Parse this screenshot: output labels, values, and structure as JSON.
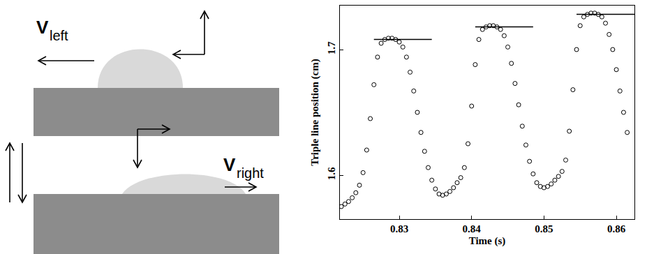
{
  "diagram": {
    "labels": [
      {
        "symbol": "V",
        "subscript": "left"
      },
      {
        "symbol": "V",
        "subscript": "right"
      }
    ]
  },
  "chart_data": {
    "type": "scatter",
    "x_label": "Time (s)",
    "y_label": "Triple line position (cm)",
    "xlim": [
      0.8218,
      0.8625
    ],
    "ylim": [
      1.565,
      1.735
    ],
    "xticks": [
      0.83,
      0.84,
      0.85,
      0.86
    ],
    "yticks": [
      1.6,
      1.7
    ],
    "grid": false,
    "series": [
      {
        "type": "scatter",
        "marker": "open circle",
        "color": "#000000",
        "x": [
          0.822,
          0.8225,
          0.823,
          0.8235,
          0.824,
          0.8245,
          0.825,
          0.8255,
          0.826,
          0.8265,
          0.827,
          0.8275,
          0.828,
          0.8285,
          0.829,
          0.8295,
          0.83,
          0.8305,
          0.831,
          0.8315,
          0.832,
          0.8325,
          0.833,
          0.8335,
          0.834,
          0.8345,
          0.835,
          0.8355,
          0.836,
          0.8365,
          0.837,
          0.8375,
          0.838,
          0.8385,
          0.839,
          0.8395,
          0.84,
          0.8405,
          0.841,
          0.8415,
          0.842,
          0.8425,
          0.843,
          0.8435,
          0.844,
          0.8445,
          0.845,
          0.8455,
          0.846,
          0.8465,
          0.847,
          0.8475,
          0.848,
          0.8485,
          0.849,
          0.8495,
          0.85,
          0.8505,
          0.851,
          0.8515,
          0.852,
          0.8525,
          0.853,
          0.8535,
          0.854,
          0.8545,
          0.855,
          0.8555,
          0.856,
          0.8565,
          0.857,
          0.8575,
          0.858,
          0.8585,
          0.859,
          0.8595,
          0.86,
          0.8605,
          0.861,
          0.8615
        ],
        "values": [
          1.575,
          1.577,
          1.579,
          1.582,
          1.586,
          1.592,
          1.602,
          1.62,
          1.645,
          1.672,
          1.694,
          1.705,
          1.708,
          1.709,
          1.709,
          1.708,
          1.706,
          1.702,
          1.694,
          1.682,
          1.667,
          1.65,
          1.634,
          1.619,
          1.606,
          1.596,
          1.589,
          1.585,
          1.584,
          1.585,
          1.587,
          1.59,
          1.594,
          1.598,
          1.606,
          1.625,
          1.655,
          1.688,
          1.708,
          1.716,
          1.718,
          1.719,
          1.719,
          1.718,
          1.716,
          1.711,
          1.702,
          1.689,
          1.673,
          1.656,
          1.639,
          1.624,
          1.611,
          1.601,
          1.594,
          1.591,
          1.59,
          1.591,
          1.593,
          1.596,
          1.599,
          1.603,
          1.612,
          1.635,
          1.668,
          1.7,
          1.719,
          1.726,
          1.728,
          1.729,
          1.729,
          1.728,
          1.726,
          1.721,
          1.712,
          1.7,
          1.684,
          1.667,
          1.65,
          1.634
        ]
      },
      {
        "type": "line",
        "line_style": "solid",
        "color": "#000000",
        "x": [
          0.8265,
          0.8345
        ],
        "values": [
          1.708,
          1.708
        ]
      },
      {
        "type": "line",
        "line_style": "solid",
        "color": "#000000",
        "x": [
          0.8405,
          0.8485
        ],
        "values": [
          1.718,
          1.718
        ]
      },
      {
        "type": "line",
        "line_style": "solid",
        "color": "#000000",
        "x": [
          0.8545,
          0.8625
        ],
        "values": [
          1.728,
          1.728
        ]
      }
    ]
  }
}
